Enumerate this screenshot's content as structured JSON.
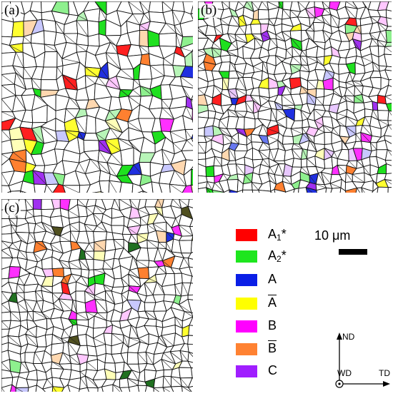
{
  "panels": [
    {
      "label": "(a)",
      "colors": [
        "#1fe01f",
        "#1fe01f",
        "#1fe01f",
        "#8ef08e",
        "#b8f5b8",
        "#ff2020",
        "#2030e0",
        "#ffff30",
        "#ff30ff",
        "#ff8030",
        "#a030f0",
        "#c8c8ff",
        "#ffc8ff",
        "#ffd8b0",
        "#ffffb8"
      ],
      "fill_fraction": 0.22,
      "seed": 11
    },
    {
      "label": "(b)",
      "colors": [
        "#1fe01f",
        "#8ef08e",
        "#b8f5b8",
        "#ff2020",
        "#2030e0",
        "#6878f0",
        "#ffff30",
        "#ff30ff",
        "#ff8030",
        "#a030f0",
        "#c8c8ff",
        "#ffc8ff",
        "#ffd8b0",
        "#ffffb8",
        "#e8c8ff"
      ],
      "fill_fraction": 0.16,
      "seed": 23
    },
    {
      "label": "(c)",
      "colors": [
        "#1fe01f",
        "#8ef08e",
        "#ff2020",
        "#2030e0",
        "#ffff30",
        "#ff30ff",
        "#ff8030",
        "#a030f0",
        "#c8c8ff",
        "#ffc8ff",
        "#ffd8b0",
        "#ffffb8",
        "#207020",
        "#505020"
      ],
      "fill_fraction": 0.1,
      "seed": 37
    }
  ],
  "legend": [
    {
      "label": "A",
      "sub": "1",
      "star": "*",
      "overline": false,
      "color": "#ff0000"
    },
    {
      "label": "A",
      "sub": "2",
      "star": "*",
      "overline": false,
      "color": "#1ee61e"
    },
    {
      "label": "A",
      "sub": "",
      "star": "",
      "overline": false,
      "color": "#0a1ee6"
    },
    {
      "label": "A",
      "sub": "",
      "star": "",
      "overline": true,
      "color": "#ffff00"
    },
    {
      "label": "B",
      "sub": "",
      "star": "",
      "overline": false,
      "color": "#ff00ff"
    },
    {
      "label": "B",
      "sub": "",
      "star": "",
      "overline": true,
      "color": "#ff8232"
    },
    {
      "label": "C",
      "sub": "",
      "star": "",
      "overline": false,
      "color": "#a01eff"
    }
  ],
  "scale_bar": {
    "text": "10 μm"
  },
  "axes": {
    "nd": "ND",
    "wd": "WD",
    "td": "TD"
  }
}
